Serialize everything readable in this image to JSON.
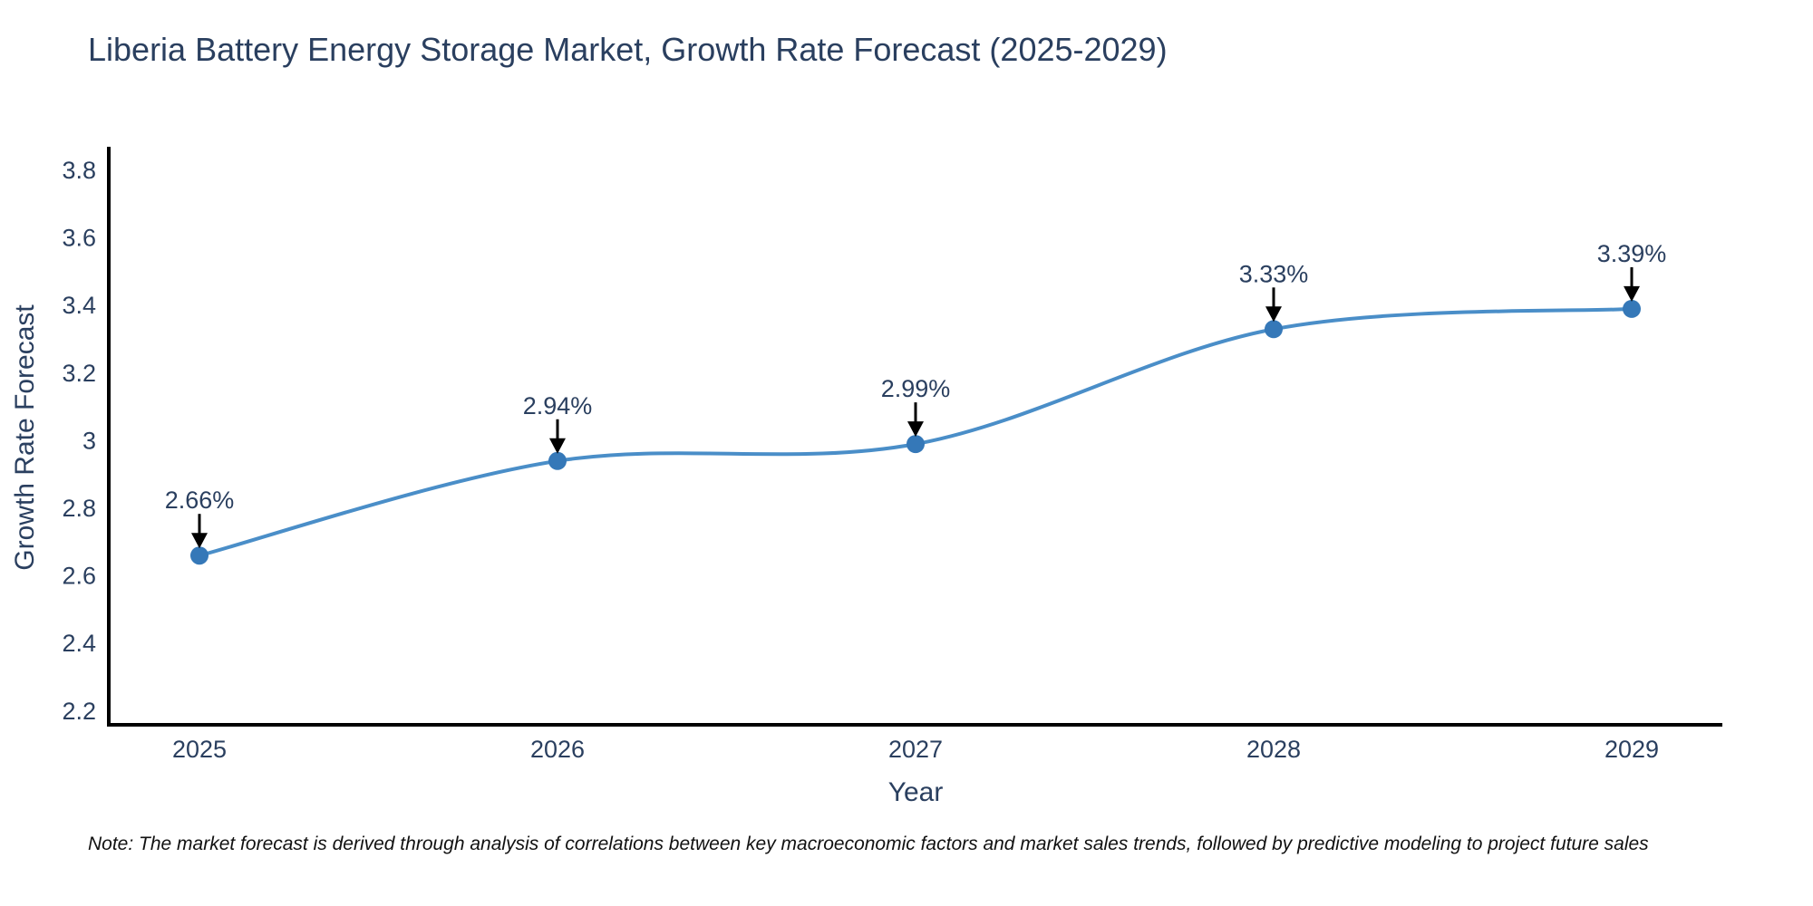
{
  "chart_data": {
    "type": "line",
    "title": "Liberia Battery Energy Storage Market, Growth Rate Forecast (2025-2029)",
    "xlabel": "Year",
    "ylabel": "Growth Rate Forecast",
    "categories": [
      "2025",
      "2026",
      "2027",
      "2028",
      "2029"
    ],
    "series": [
      {
        "name": "Growth Rate Forecast",
        "values": [
          2.66,
          2.94,
          2.99,
          3.33,
          3.39
        ],
        "point_labels": [
          "2.66%",
          "2.94%",
          "2.99%",
          "3.33%",
          "3.39%"
        ]
      }
    ],
    "ylim": [
      2.2,
      3.8
    ],
    "yticks": [
      2.2,
      2.4,
      2.6,
      2.8,
      3,
      3.2,
      3.4,
      3.6,
      3.8
    ],
    "ytick_labels": [
      "2.2",
      "2.4",
      "2.6",
      "2.8",
      "3",
      "3.2",
      "3.4",
      "3.6",
      "3.8"
    ],
    "line_shape": "spline",
    "grid": false,
    "legend": "none",
    "colors": {
      "line": "#4a8ec8",
      "marker": "#3578b8",
      "axis_line": "#000000",
      "text": "#2a3f5f",
      "annotation_arrow": "#000000"
    }
  },
  "footnote": {
    "text": "Note: The market forecast is derived through analysis of correlations between key macroeconomic factors and market sales trends, followed by predictive modeling to project future sales"
  }
}
